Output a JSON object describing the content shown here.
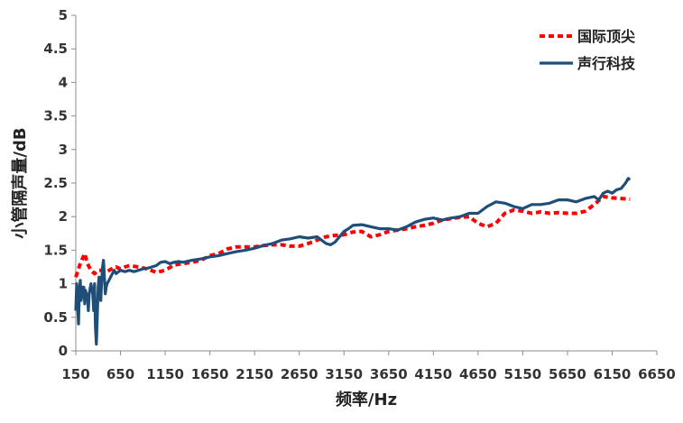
{
  "chart_data": {
    "type": "line",
    "title": "",
    "xlabel": "频率/Hz",
    "ylabel": "小管隔声量/dB",
    "xlim": [
      150,
      6650
    ],
    "ylim": [
      0,
      5
    ],
    "x_ticks": [
      "150",
      "650",
      "1150",
      "1650",
      "2150",
      "2650",
      "3150",
      "3650",
      "4150",
      "4650",
      "5150",
      "5650",
      "6150",
      "6650"
    ],
    "y_ticks": [
      "0",
      "0.5",
      "1",
      "1.5",
      "2",
      "2.5",
      "3",
      "3.5",
      "4",
      "4.5",
      "5"
    ],
    "grid": false,
    "legend_position": "top-right",
    "series": [
      {
        "name": "国际顶尖",
        "color": "#ff0000",
        "style": "dashed",
        "points": [
          [
            150,
            1.1
          ],
          [
            200,
            1.3
          ],
          [
            250,
            1.45
          ],
          [
            280,
            1.3
          ],
          [
            320,
            1.2
          ],
          [
            360,
            1.15
          ],
          [
            400,
            1.2
          ],
          [
            450,
            1.2
          ],
          [
            500,
            1.18
          ],
          [
            550,
            1.22
          ],
          [
            600,
            1.25
          ],
          [
            650,
            1.22
          ],
          [
            700,
            1.25
          ],
          [
            750,
            1.27
          ],
          [
            850,
            1.25
          ],
          [
            950,
            1.22
          ],
          [
            1050,
            1.17
          ],
          [
            1150,
            1.2
          ],
          [
            1250,
            1.28
          ],
          [
            1350,
            1.3
          ],
          [
            1450,
            1.32
          ],
          [
            1550,
            1.35
          ],
          [
            1650,
            1.42
          ],
          [
            1750,
            1.45
          ],
          [
            1850,
            1.52
          ],
          [
            1950,
            1.55
          ],
          [
            2050,
            1.55
          ],
          [
            2150,
            1.55
          ],
          [
            2250,
            1.57
          ],
          [
            2350,
            1.58
          ],
          [
            2450,
            1.58
          ],
          [
            2550,
            1.56
          ],
          [
            2650,
            1.56
          ],
          [
            2750,
            1.6
          ],
          [
            2850,
            1.65
          ],
          [
            2950,
            1.7
          ],
          [
            3050,
            1.72
          ],
          [
            3150,
            1.73
          ],
          [
            3250,
            1.77
          ],
          [
            3350,
            1.78
          ],
          [
            3450,
            1.7
          ],
          [
            3550,
            1.73
          ],
          [
            3650,
            1.78
          ],
          [
            3750,
            1.8
          ],
          [
            3850,
            1.82
          ],
          [
            3950,
            1.85
          ],
          [
            4050,
            1.87
          ],
          [
            4150,
            1.9
          ],
          [
            4250,
            1.95
          ],
          [
            4350,
            1.97
          ],
          [
            4450,
            1.99
          ],
          [
            4550,
            2.0
          ],
          [
            4650,
            1.9
          ],
          [
            4750,
            1.85
          ],
          [
            4850,
            1.9
          ],
          [
            4950,
            2.05
          ],
          [
            5050,
            2.1
          ],
          [
            5150,
            2.08
          ],
          [
            5250,
            2.05
          ],
          [
            5350,
            2.07
          ],
          [
            5450,
            2.05
          ],
          [
            5550,
            2.06
          ],
          [
            5650,
            2.05
          ],
          [
            5750,
            2.05
          ],
          [
            5850,
            2.08
          ],
          [
            5950,
            2.18
          ],
          [
            6050,
            2.3
          ],
          [
            6150,
            2.28
          ],
          [
            6250,
            2.27
          ],
          [
            6350,
            2.26
          ]
        ]
      },
      {
        "name": "声行科技",
        "color": "#1f4e79",
        "style": "solid",
        "points": [
          [
            150,
            0.6
          ],
          [
            160,
            1.0
          ],
          [
            170,
            0.7
          ],
          [
            180,
            0.4
          ],
          [
            190,
            0.9
          ],
          [
            200,
            1.05
          ],
          [
            210,
            0.75
          ],
          [
            220,
            0.95
          ],
          [
            230,
            0.8
          ],
          [
            240,
            0.95
          ],
          [
            250,
            0.7
          ],
          [
            260,
            0.9
          ],
          [
            270,
            0.75
          ],
          [
            280,
            0.85
          ],
          [
            290,
            0.6
          ],
          [
            300,
            0.85
          ],
          [
            320,
            1.0
          ],
          [
            340,
            0.85
          ],
          [
            350,
            0.6
          ],
          [
            360,
            1.0
          ],
          [
            370,
            0.35
          ],
          [
            380,
            0.1
          ],
          [
            390,
            0.5
          ],
          [
            400,
            0.95
          ],
          [
            410,
            1.1
          ],
          [
            420,
            0.85
          ],
          [
            430,
            0.75
          ],
          [
            440,
            1.05
          ],
          [
            450,
            1.25
          ],
          [
            460,
            1.35
          ],
          [
            470,
            1.1
          ],
          [
            480,
            0.85
          ],
          [
            490,
            0.95
          ],
          [
            500,
            1.0
          ],
          [
            520,
            1.05
          ],
          [
            540,
            1.1
          ],
          [
            560,
            1.15
          ],
          [
            580,
            1.2
          ],
          [
            600,
            1.15
          ],
          [
            650,
            1.2
          ],
          [
            700,
            1.18
          ],
          [
            750,
            1.2
          ],
          [
            800,
            1.18
          ],
          [
            850,
            1.2
          ],
          [
            900,
            1.22
          ],
          [
            950,
            1.23
          ],
          [
            1000,
            1.25
          ],
          [
            1050,
            1.27
          ],
          [
            1100,
            1.32
          ],
          [
            1150,
            1.33
          ],
          [
            1200,
            1.3
          ],
          [
            1250,
            1.32
          ],
          [
            1300,
            1.33
          ],
          [
            1350,
            1.32
          ],
          [
            1450,
            1.35
          ],
          [
            1550,
            1.37
          ],
          [
            1650,
            1.4
          ],
          [
            1750,
            1.42
          ],
          [
            1850,
            1.45
          ],
          [
            1950,
            1.48
          ],
          [
            2050,
            1.5
          ],
          [
            2150,
            1.53
          ],
          [
            2250,
            1.57
          ],
          [
            2350,
            1.6
          ],
          [
            2450,
            1.65
          ],
          [
            2550,
            1.67
          ],
          [
            2650,
            1.7
          ],
          [
            2750,
            1.68
          ],
          [
            2850,
            1.7
          ],
          [
            2950,
            1.6
          ],
          [
            3000,
            1.58
          ],
          [
            3050,
            1.62
          ],
          [
            3100,
            1.7
          ],
          [
            3150,
            1.78
          ],
          [
            3200,
            1.82
          ],
          [
            3250,
            1.87
          ],
          [
            3350,
            1.88
          ],
          [
            3450,
            1.85
          ],
          [
            3550,
            1.82
          ],
          [
            3650,
            1.82
          ],
          [
            3750,
            1.8
          ],
          [
            3850,
            1.85
          ],
          [
            3950,
            1.92
          ],
          [
            4050,
            1.96
          ],
          [
            4150,
            1.98
          ],
          [
            4250,
            1.95
          ],
          [
            4350,
            1.98
          ],
          [
            4450,
            2.0
          ],
          [
            4550,
            2.05
          ],
          [
            4650,
            2.05
          ],
          [
            4750,
            2.15
          ],
          [
            4850,
            2.22
          ],
          [
            4950,
            2.2
          ],
          [
            5050,
            2.15
          ],
          [
            5150,
            2.12
          ],
          [
            5250,
            2.18
          ],
          [
            5350,
            2.18
          ],
          [
            5450,
            2.2
          ],
          [
            5550,
            2.25
          ],
          [
            5650,
            2.25
          ],
          [
            5750,
            2.22
          ],
          [
            5850,
            2.27
          ],
          [
            5950,
            2.3
          ],
          [
            6000,
            2.25
          ],
          [
            6050,
            2.35
          ],
          [
            6100,
            2.38
          ],
          [
            6150,
            2.35
          ],
          [
            6200,
            2.4
          ],
          [
            6250,
            2.42
          ],
          [
            6300,
            2.5
          ],
          [
            6330,
            2.57
          ],
          [
            6350,
            2.55
          ]
        ]
      }
    ]
  }
}
